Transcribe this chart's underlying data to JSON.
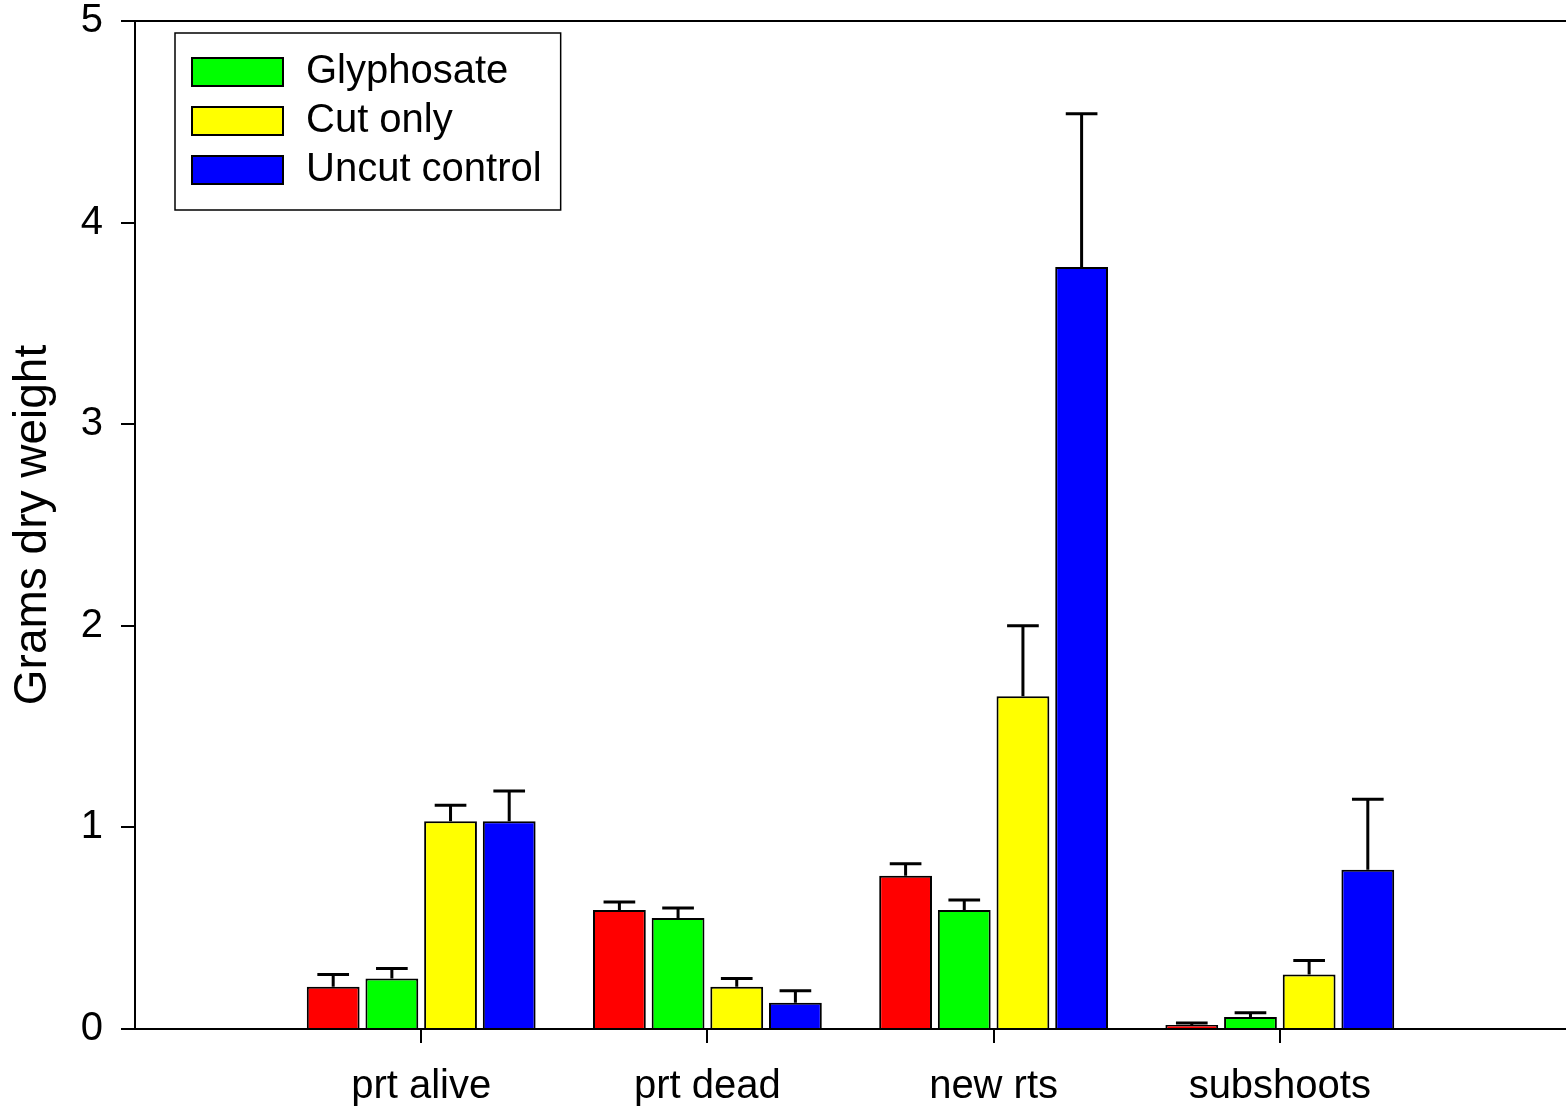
{
  "chart_data": {
    "type": "bar",
    "ylabel": "Grams dry weight",
    "categories": [
      "prt alive",
      "prt dead",
      "new rts",
      "subshoots"
    ],
    "series": [
      {
        "color": "#ff0000",
        "values": [
          0.21,
          0.59,
          0.76,
          0.02
        ],
        "errors": [
          [
            0.21,
            0.27
          ],
          [
            0.59,
            0.63
          ],
          [
            0.76,
            0.82
          ],
          [
            0.02,
            0.03
          ]
        ]
      },
      {
        "name": "Glyphosate",
        "color": "#00ff00",
        "values": [
          0.25,
          0.55,
          0.59,
          0.06
        ],
        "errors": [
          [
            0.25,
            0.3
          ],
          [
            0.55,
            0.6
          ],
          [
            0.59,
            0.64
          ],
          [
            0.06,
            0.08
          ]
        ]
      },
      {
        "name": "Cut only",
        "color": "#ffff00",
        "values": [
          1.03,
          0.21,
          1.65,
          0.27
        ],
        "errors": [
          [
            1.03,
            1.11
          ],
          [
            0.21,
            0.25
          ],
          [
            1.65,
            2.0
          ],
          [
            0.27,
            0.34
          ]
        ]
      },
      {
        "name": "Uncut control",
        "color": "#0000ff",
        "values": [
          1.03,
          0.13,
          3.78,
          0.79
        ],
        "errors": [
          [
            1.03,
            1.18
          ],
          [
            0.13,
            0.19
          ],
          [
            3.78,
            4.54
          ],
          [
            0.79,
            1.14
          ]
        ]
      }
    ],
    "ylim": [
      0,
      5
    ],
    "yticks": [
      0,
      1,
      2,
      3,
      4,
      5
    ],
    "grid": false,
    "legend": "top left"
  }
}
